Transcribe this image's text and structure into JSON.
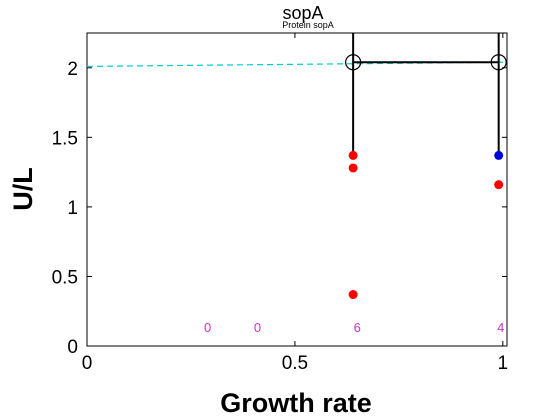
{
  "chart_data": {
    "type": "scatter",
    "title": "sopA",
    "subtitle": "Protein sopA",
    "xlabel": "Growth rate",
    "ylabel": "U/L",
    "xlim": [
      0,
      1.01
    ],
    "ylim": [
      0,
      2.25
    ],
    "xticks": [
      0,
      0.5,
      1
    ],
    "xtick_labels": [
      "0",
      "0.5",
      "1"
    ],
    "yticks": [
      0,
      0.5,
      1,
      1.5,
      2
    ],
    "ytick_labels": [
      "0",
      "0.5",
      "1",
      "1.5",
      "2"
    ],
    "grid": false,
    "reference_line": {
      "style": "dashed",
      "color": "#00cccc",
      "y_start": 2.01,
      "y_end": 2.04
    },
    "red_points": [
      {
        "x": 0.64,
        "y": 1.37
      },
      {
        "x": 0.64,
        "y": 1.28
      },
      {
        "x": 0.64,
        "y": 0.37
      },
      {
        "x": 0.99,
        "y": 1.16
      }
    ],
    "blue_points": [
      {
        "x": 0.99,
        "y": 1.37
      }
    ],
    "mean_markers": [
      {
        "x": 0.64,
        "y": 2.04
      },
      {
        "x": 0.99,
        "y": 2.04
      }
    ],
    "error_bars": [
      {
        "x": 0.64,
        "low": 1.37,
        "high": 2.25
      },
      {
        "x": 0.99,
        "low": 1.37,
        "high": 2.25
      }
    ],
    "counts": [
      {
        "x": 0.29,
        "label": "0"
      },
      {
        "x": 0.41,
        "label": "0"
      },
      {
        "x": 0.65,
        "label": "6"
      },
      {
        "x": 0.995,
        "label": "4"
      }
    ],
    "colors": {
      "red": "#ff0000",
      "blue": "#0000dd",
      "count": "#cc33cc",
      "reference": "#00cccc",
      "axis": "#000000"
    }
  }
}
